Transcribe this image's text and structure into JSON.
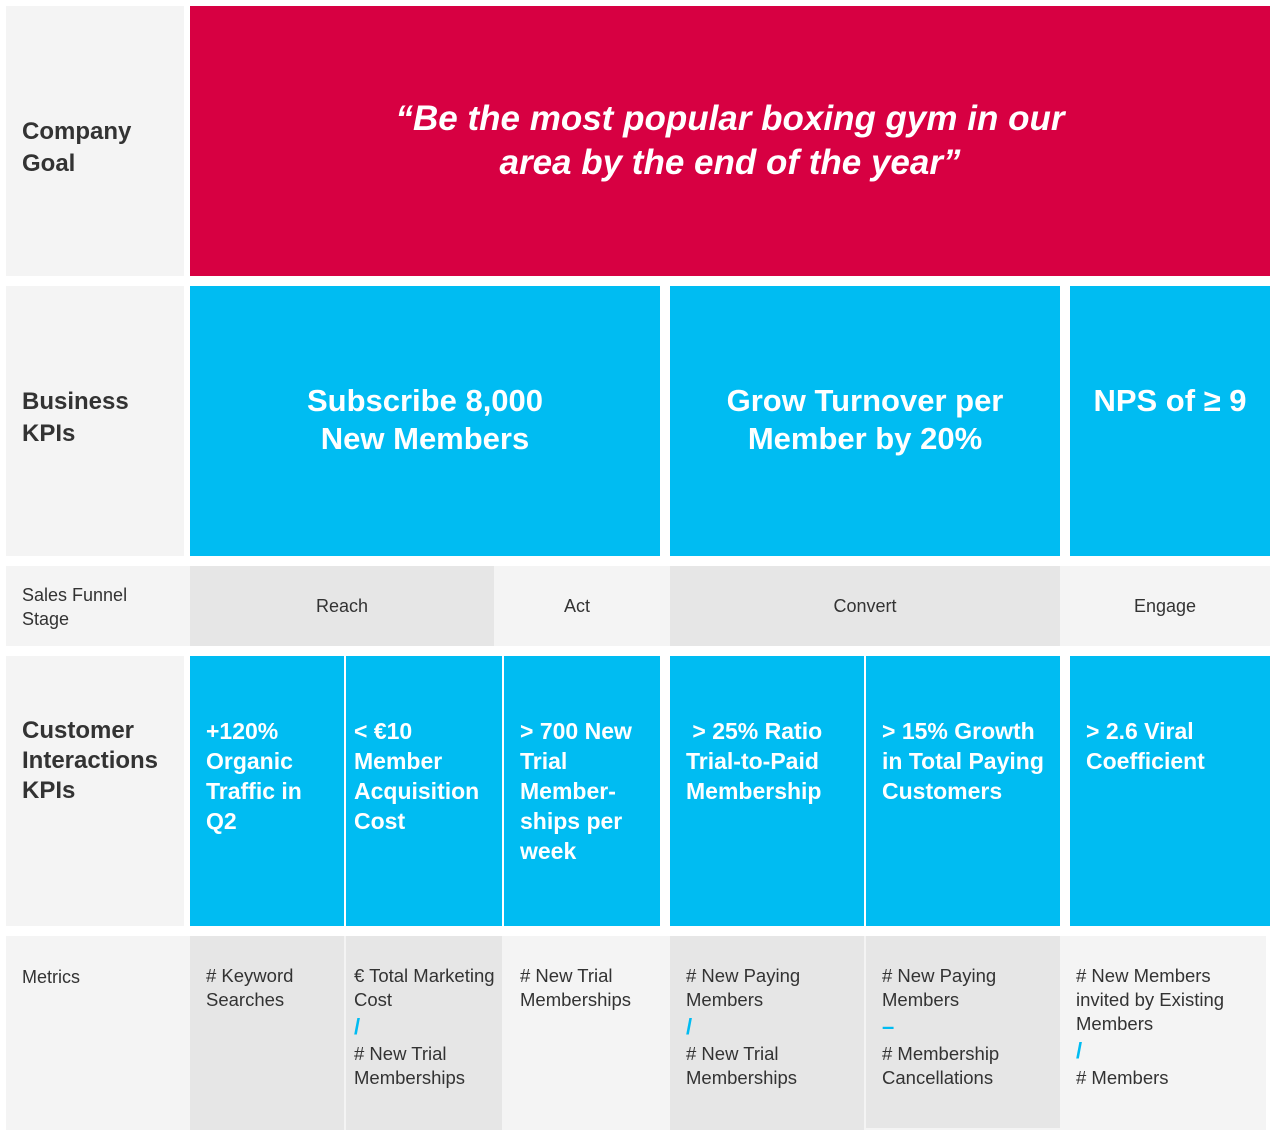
{
  "rows": {
    "company_goal": "Company Goal",
    "business_kpis": "Business KPIs",
    "sales_funnel": "Sales Funnel Stage",
    "customer_kpis": "Customer Interactions KPIs",
    "metrics": "Metrics"
  },
  "goal": "“Be the most popular boxing gym in our area by the end of the year”",
  "business": [
    "Subscribe 8,000 New Members",
    "Grow Turnover per Member by 20%",
    "NPS of ≥ 9"
  ],
  "stages": [
    "Reach",
    "Act",
    "Convert",
    "Engage"
  ],
  "customer": [
    "+120% Organic Traffic in Q2",
    "< €10 Member Acquisition Cost",
    "> 700 New Trial Member-ships per week",
    " > 25% Ratio Trial-to-Paid Membership",
    "> 15% Growth in Total Paying Customers",
    "> 2.6 Viral Coefficient"
  ],
  "metrics": [
    {
      "top": "# Keyword Searches"
    },
    {
      "top": "€ Total Marketing Cost",
      "op": "/",
      "bottom": "# New Trial Memberships"
    },
    {
      "top": "# New Trial Memberships"
    },
    {
      "top": "# New Paying Members",
      "op": "/",
      "bottom": "# New Trial Memberships"
    },
    {
      "top": "# New Paying Members",
      "op": "–",
      "bottom": "# Membership Cancellations"
    },
    {
      "top": "# New Members invited by Existing Members",
      "op": "/",
      "bottom": "# Members"
    }
  ],
  "colors": {
    "red": "#d70042",
    "blue": "#00bcf2",
    "gray": "#e6e6e6",
    "light": "#f4f4f4"
  }
}
